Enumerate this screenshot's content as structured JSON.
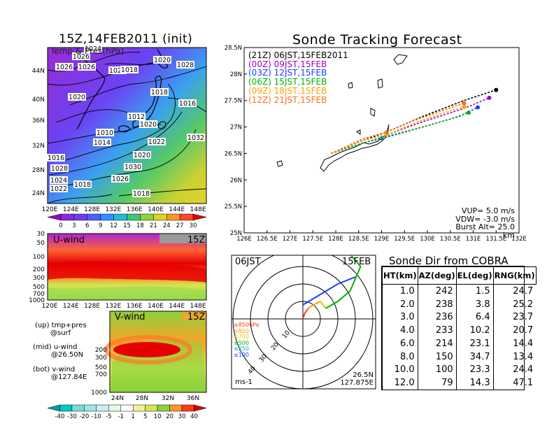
{
  "main_title": "Sonde Tracking Forecast",
  "map_title": "15Z,14FEB2011 (init)",
  "map_label": "Temp & Pres(hPa)",
  "map_lat_ticks": [
    "44N",
    "40N",
    "36N",
    "32N",
    "28N",
    "24N"
  ],
  "map_lon_ticks": [
    "120E",
    "124E",
    "128E",
    "132E",
    "136E",
    "140E",
    "144E",
    "148E"
  ],
  "isobar_labels": [
    "1024",
    "1026",
    "1026",
    "1026",
    "1024",
    "1018",
    "1020",
    "1028",
    "1020",
    "1018",
    "1016",
    "1012",
    "1020",
    "1010",
    "1022",
    "1014",
    "1020",
    "1032",
    "1016",
    "1030",
    "1028",
    "1024",
    "1018",
    "1026",
    "1022",
    "1018"
  ],
  "temp_colorbar": {
    "ticks": [
      "0",
      "3",
      "6",
      "9",
      "12",
      "15",
      "18",
      "21",
      "24",
      "27",
      "30"
    ],
    "colors": [
      "#a000c8",
      "#8c28dc",
      "#6e3cf0",
      "#4c60ff",
      "#2e90ff",
      "#22bcd8",
      "#3cc878",
      "#8ed23c",
      "#dcd228",
      "#ff9628",
      "#ff4628",
      "#e60000"
    ]
  },
  "uwind": {
    "label": "U-wind",
    "time": "15Z",
    "y_ticks": [
      "30",
      "50",
      "100",
      "200",
      "300",
      "500",
      "700",
      "1000"
    ]
  },
  "vwind": {
    "label": "V-wind",
    "time": "15Z",
    "y_ticks": [
      "200",
      "300",
      "500",
      "700",
      "1000"
    ],
    "x_ticks": [
      "24N",
      "28N",
      "32N",
      "36N"
    ]
  },
  "wind_colorbar": {
    "ticks": [
      "-40",
      "-30",
      "-20",
      "-10",
      "-5",
      "-1",
      "1",
      "5",
      "10",
      "20",
      "30",
      "40"
    ],
    "colors": [
      "#00a0a0",
      "#00c8c8",
      "#78dcdc",
      "#a0e6e6",
      "#c8f0f0",
      "#e6fae6",
      "#ffffff",
      "#f0f0a0",
      "#d2e650",
      "#8cd23c",
      "#ff9628",
      "#ff3c14",
      "#dc0000"
    ]
  },
  "panel_notes": {
    "up": [
      "(up) tmp+pres",
      "@surf"
    ],
    "mid": [
      "(mid) u-wind",
      "@26.50N"
    ],
    "bot": [
      "(bot) v-wind",
      "@127.84E"
    ]
  },
  "track_legend": [
    {
      "label": "(21Z) 06JST,15FEB2011",
      "color": "#000000"
    },
    {
      "label": "(00Z) 09JST,15FEB",
      "color": "#a000c8"
    },
    {
      "label": "(03Z) 12JST,15FEB",
      "color": "#1e3cff"
    },
    {
      "label": "(06Z) 15JST,15FEB",
      "color": "#00b400"
    },
    {
      "label": "(09Z) 18JST,15FEB",
      "color": "#ffa000"
    },
    {
      "label": "(12Z) 21JST,15FEB",
      "color": "#ff6e1e"
    }
  ],
  "track_params": [
    "VUP= 5.0 m/s",
    "VDW= -3.0 m/s",
    "Burst Alt= 25.0 km"
  ],
  "chart_data": {
    "type": "line",
    "title": "Sonde Tracking Forecast",
    "xlim": [
      126,
      132
    ],
    "ylim": [
      25,
      28.5
    ],
    "x_ticks": [
      "126E",
      "126.5E",
      "127E",
      "127.5E",
      "128E",
      "128.5E",
      "129E",
      "129.5E",
      "130E",
      "130.5E",
      "131E",
      "131.5E",
      "132E"
    ],
    "y_ticks": [
      "25N",
      "25.5N",
      "26N",
      "26.5N",
      "27N",
      "27.5N",
      "28N",
      "28.5N"
    ],
    "series": [
      {
        "name": "(21Z) 06JST,15FEB2011",
        "color": "#000000",
        "points": [
          [
            127.9,
            26.5
          ],
          [
            128.6,
            26.75
          ],
          [
            129.1,
            26.9
          ],
          [
            129.9,
            27.2
          ],
          [
            130.8,
            27.5
          ],
          [
            131.5,
            27.7
          ]
        ]
      },
      {
        "name": "(00Z) 09JST,15FEB",
        "color": "#a000c8",
        "points": [
          [
            127.9,
            26.5
          ],
          [
            128.6,
            26.75
          ],
          [
            129.1,
            26.85
          ],
          [
            129.9,
            27.1
          ],
          [
            130.8,
            27.35
          ],
          [
            131.35,
            27.55
          ]
        ]
      },
      {
        "name": "(03Z) 12JST,15FEB",
        "color": "#1e3cff",
        "points": [
          [
            127.9,
            26.5
          ],
          [
            128.6,
            26.7
          ],
          [
            129.0,
            26.78
          ],
          [
            129.9,
            27.0
          ],
          [
            130.7,
            27.2
          ],
          [
            131.1,
            27.37
          ]
        ]
      },
      {
        "name": "(06Z) 15JST,15FEB",
        "color": "#00b400",
        "points": [
          [
            127.9,
            26.5
          ],
          [
            128.6,
            26.7
          ],
          [
            129.0,
            26.8
          ],
          [
            129.9,
            27.0
          ],
          [
            130.5,
            27.15
          ],
          [
            130.9,
            27.27
          ]
        ]
      },
      {
        "name": "(09Z) 18JST,15FEB",
        "color": "#ffa000",
        "points": [
          [
            127.9,
            26.5
          ],
          [
            128.6,
            26.75
          ],
          [
            129.1,
            26.85
          ],
          [
            129.8,
            27.1
          ],
          [
            130.3,
            27.25
          ],
          [
            130.8,
            27.38
          ]
        ]
      },
      {
        "name": "(12Z) 21JST,15FEB",
        "color": "#ff6e1e",
        "points": [
          [
            127.9,
            26.5
          ],
          [
            128.6,
            26.78
          ],
          [
            129.1,
            26.9
          ],
          [
            129.7,
            27.12
          ],
          [
            130.3,
            27.3
          ],
          [
            130.8,
            27.45
          ]
        ]
      }
    ]
  },
  "polar": {
    "time": "06JST",
    "date": "15FEB",
    "units": "ms-1",
    "ring_labels": [
      "10",
      "20",
      "30",
      "40"
    ],
    "location": [
      "26.5N",
      "127.875E"
    ],
    "layer_legend": [
      {
        "label": "≥850hPa",
        "color": "#ff3c14"
      },
      {
        "label": "≤850",
        "color": "#ffa000"
      },
      {
        "label": "≤700",
        "color": "#e6c800"
      },
      {
        "label": "≤500",
        "color": "#00b400"
      },
      {
        "label": "≤250",
        "color": "#00a0dc"
      },
      {
        "label": "≤100",
        "color": "#1e3cff"
      }
    ],
    "hodograph": [
      {
        "color": "#ff3c14",
        "pts": [
          [
            0,
            0
          ],
          [
            1,
            3
          ],
          [
            3,
            6
          ]
        ]
      },
      {
        "color": "#ffa000",
        "pts": [
          [
            3,
            6
          ],
          [
            6,
            8
          ],
          [
            10,
            10
          ]
        ]
      },
      {
        "color": "#e6c800",
        "pts": [
          [
            10,
            10
          ],
          [
            13,
            6
          ]
        ]
      },
      {
        "color": "#00b400",
        "pts": [
          [
            13,
            6
          ],
          [
            20,
            10
          ],
          [
            27,
            16
          ],
          [
            33,
            30
          ],
          [
            26,
            38
          ]
        ]
      },
      {
        "color": "#00a0dc",
        "pts": [
          [
            26,
            38
          ],
          [
            33,
            44
          ],
          [
            31,
            40
          ]
        ]
      },
      {
        "color": "#1e3cff",
        "pts": [
          [
            0,
            8
          ],
          [
            20,
            20
          ],
          [
            30,
            24
          ]
        ]
      }
    ]
  },
  "direction_table": {
    "title": "Sonde Dir from COBRA",
    "headers": [
      "HT(km)",
      "AZ(deg)",
      "EL(deg)",
      "RNG(km)"
    ],
    "rows": [
      [
        "1.0",
        "242",
        "1.5",
        "24.7"
      ],
      [
        "2.0",
        "238",
        "3.8",
        "25.2"
      ],
      [
        "3.0",
        "236",
        "6.4",
        "23.7"
      ],
      [
        "4.0",
        "233",
        "10.2",
        "20.7"
      ],
      [
        "6.0",
        "214",
        "23.1",
        "14.4"
      ],
      [
        "8.0",
        "150",
        "34.7",
        "13.4"
      ],
      [
        "10.0",
        "100",
        "23.3",
        "24.4"
      ],
      [
        "12.0",
        "79",
        "14.3",
        "47.1"
      ]
    ]
  }
}
